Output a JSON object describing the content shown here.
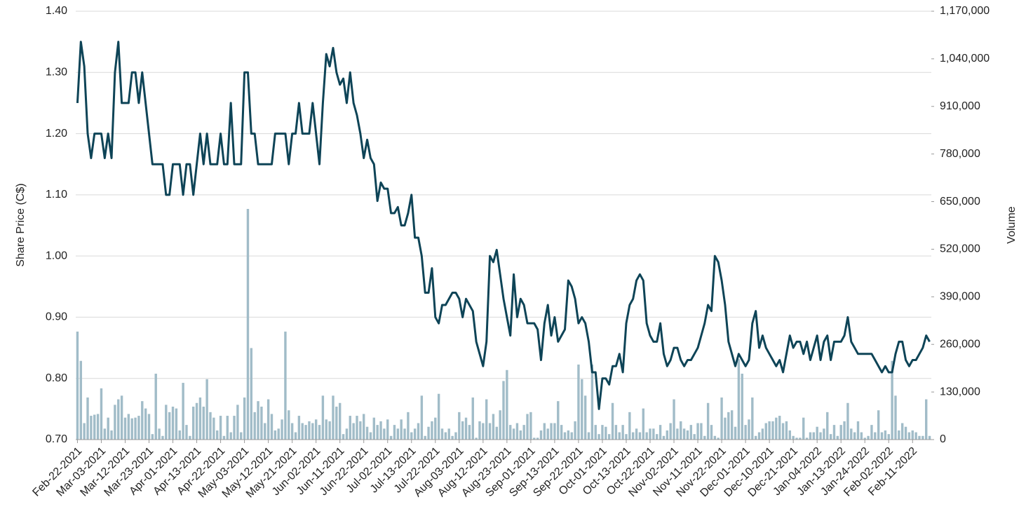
{
  "chart_data": {
    "type": "combo",
    "ylabel": "Share Price (C$)",
    "y2label": "Volume",
    "categories": [
      "Feb-22-2021",
      null,
      null,
      null,
      null,
      null,
      null,
      "Mar-03-2021",
      null,
      null,
      null,
      null,
      null,
      null,
      "Mar-12-2021",
      null,
      null,
      null,
      null,
      null,
      null,
      "Mar-23-2021",
      null,
      null,
      null,
      null,
      null,
      null,
      "Apr-01-2021",
      null,
      null,
      null,
      null,
      null,
      null,
      "Apr-13-2021",
      null,
      null,
      null,
      null,
      null,
      null,
      "Apr-22-2021",
      null,
      null,
      null,
      null,
      null,
      null,
      "May-03-2021",
      null,
      null,
      null,
      null,
      null,
      null,
      "May-12-2021",
      null,
      null,
      null,
      null,
      null,
      null,
      "May-21-2021",
      null,
      null,
      null,
      null,
      null,
      null,
      "Jun-02-2021",
      null,
      null,
      null,
      null,
      null,
      null,
      "Jun-11-2021",
      null,
      null,
      null,
      null,
      null,
      null,
      "Jun-22-2021",
      null,
      null,
      null,
      null,
      null,
      null,
      "Jul-02-2021",
      null,
      null,
      null,
      null,
      null,
      null,
      "Jul-13-2021",
      null,
      null,
      null,
      null,
      null,
      null,
      "Jul-22-2021",
      null,
      null,
      null,
      null,
      null,
      null,
      "Aug-03-2021",
      null,
      null,
      null,
      null,
      null,
      null,
      "Aug-12-2021",
      null,
      null,
      null,
      null,
      null,
      null,
      "Aug-23-2021",
      null,
      null,
      null,
      null,
      null,
      null,
      "Sep-01-2021",
      null,
      null,
      null,
      null,
      null,
      null,
      "Sep-13-2021",
      null,
      null,
      null,
      null,
      null,
      null,
      "Sep-22-2021",
      null,
      null,
      null,
      null,
      null,
      null,
      "Oct-01-2021",
      null,
      null,
      null,
      null,
      null,
      null,
      "Oct-13-2021",
      null,
      null,
      null,
      null,
      null,
      null,
      "Oct-22-2021",
      null,
      null,
      null,
      null,
      null,
      null,
      "Nov-02-2021",
      null,
      null,
      null,
      null,
      null,
      null,
      "Nov-11-2021",
      null,
      null,
      null,
      null,
      null,
      null,
      "Nov-22-2021",
      null,
      null,
      null,
      null,
      null,
      null,
      "Dec-01-2021",
      null,
      null,
      null,
      null,
      null,
      null,
      "Dec-10-2021",
      null,
      null,
      null,
      null,
      null,
      null,
      "Dec-21-2021",
      null,
      null,
      null,
      null,
      null,
      null,
      "Jan-04-2022",
      null,
      null,
      null,
      null,
      null,
      null,
      "Jan-13-2022",
      null,
      null,
      null,
      null,
      null,
      null,
      "Jan-24-2022",
      null,
      null,
      null,
      null,
      null,
      null,
      "Feb-02-2022",
      null,
      null,
      null,
      null,
      null,
      null,
      "Feb-11-2022",
      null,
      null,
      null,
      null,
      null
    ],
    "series": [
      {
        "name": "Volume",
        "type": "bar",
        "axis": "y2",
        "color": "#a1bcc8",
        "values": [
          295000,
          215000,
          45000,
          115000,
          65000,
          68000,
          70000,
          140000,
          30000,
          60000,
          25000,
          95000,
          110000,
          120000,
          60000,
          70000,
          58000,
          60000,
          65000,
          105000,
          85000,
          70000,
          15000,
          180000,
          30000,
          10000,
          95000,
          75000,
          90000,
          85000,
          25000,
          155000,
          40000,
          10000,
          90000,
          100000,
          115000,
          90000,
          165000,
          75000,
          60000,
          25000,
          65000,
          10000,
          65000,
          20000,
          65000,
          95000,
          20000,
          115000,
          630000,
          250000,
          75000,
          105000,
          90000,
          45000,
          110000,
          70000,
          25000,
          30000,
          55000,
          295000,
          80000,
          45000,
          20000,
          65000,
          45000,
          40000,
          50000,
          45000,
          55000,
          40000,
          120000,
          55000,
          50000,
          120000,
          90000,
          100000,
          15000,
          30000,
          65000,
          45000,
          65000,
          50000,
          70000,
          35000,
          20000,
          60000,
          40000,
          50000,
          30000,
          55000,
          10000,
          40000,
          30000,
          55000,
          30000,
          75000,
          20000,
          30000,
          45000,
          120000,
          10000,
          35000,
          50000,
          60000,
          125000,
          30000,
          20000,
          30000,
          10000,
          20000,
          75000,
          50000,
          60000,
          40000,
          115000,
          5000,
          50000,
          45000,
          110000,
          45000,
          70000,
          35000,
          80000,
          160000,
          190000,
          40000,
          30000,
          45000,
          25000,
          40000,
          70000,
          75000,
          5000,
          5000,
          25000,
          45000,
          30000,
          45000,
          45000,
          105000,
          40000,
          20000,
          25000,
          20000,
          50000,
          205000,
          165000,
          120000,
          20000,
          205000,
          40000,
          15000,
          40000,
          35000,
          15000,
          100000,
          40000,
          20000,
          40000,
          15000,
          75000,
          20000,
          30000,
          20000,
          85000,
          20000,
          30000,
          30000,
          15000,
          40000,
          10000,
          25000,
          45000,
          110000,
          30000,
          50000,
          30000,
          25000,
          40000,
          15000,
          45000,
          45000,
          10000,
          100000,
          40000,
          10000,
          5000,
          115000,
          60000,
          75000,
          80000,
          35000,
          220000,
          180000,
          40000,
          55000,
          115000,
          10000,
          20000,
          30000,
          45000,
          50000,
          50000,
          60000,
          65000,
          45000,
          50000,
          25000,
          10000,
          5000,
          5000,
          60000,
          5000,
          20000,
          20000,
          35000,
          20000,
          30000,
          75000,
          15000,
          40000,
          10000,
          40000,
          50000,
          100000,
          30000,
          20000,
          50000,
          20000,
          5000,
          10000,
          40000,
          20000,
          80000,
          20000,
          25000,
          15000,
          215000,
          120000,
          25000,
          45000,
          35000,
          20000,
          25000,
          20000,
          10000,
          10000,
          110000,
          10000
        ]
      },
      {
        "name": "Share Price",
        "type": "line",
        "color": "#0e4457",
        "values": [
          1.25,
          1.35,
          1.31,
          1.2,
          1.16,
          1.2,
          1.2,
          1.2,
          1.16,
          1.2,
          1.16,
          1.3,
          1.35,
          1.25,
          1.25,
          1.25,
          1.3,
          1.3,
          1.25,
          1.3,
          1.25,
          1.2,
          1.15,
          1.15,
          1.15,
          1.15,
          1.1,
          1.1,
          1.15,
          1.15,
          1.15,
          1.1,
          1.15,
          1.15,
          1.1,
          1.15,
          1.2,
          1.15,
          1.2,
          1.15,
          1.15,
          1.15,
          1.2,
          1.15,
          1.15,
          1.25,
          1.15,
          1.15,
          1.15,
          1.3,
          1.3,
          1.2,
          1.2,
          1.15,
          1.15,
          1.15,
          1.15,
          1.15,
          1.2,
          1.2,
          1.2,
          1.2,
          1.15,
          1.2,
          1.2,
          1.25,
          1.2,
          1.2,
          1.2,
          1.25,
          1.2,
          1.15,
          1.25,
          1.33,
          1.31,
          1.34,
          1.3,
          1.28,
          1.29,
          1.25,
          1.3,
          1.25,
          1.23,
          1.2,
          1.16,
          1.19,
          1.16,
          1.15,
          1.09,
          1.12,
          1.11,
          1.11,
          1.07,
          1.07,
          1.08,
          1.05,
          1.05,
          1.07,
          1.1,
          1.03,
          1.03,
          1.0,
          0.94,
          0.94,
          0.98,
          0.9,
          0.89,
          0.92,
          0.92,
          0.93,
          0.94,
          0.94,
          0.93,
          0.9,
          0.93,
          0.92,
          0.91,
          0.86,
          0.84,
          0.82,
          0.86,
          1.0,
          0.99,
          1.01,
          0.97,
          0.93,
          0.9,
          0.87,
          0.97,
          0.9,
          0.93,
          0.92,
          0.89,
          0.89,
          0.89,
          0.88,
          0.83,
          0.89,
          0.92,
          0.87,
          0.9,
          0.86,
          0.87,
          0.88,
          0.96,
          0.95,
          0.93,
          0.89,
          0.9,
          0.89,
          0.86,
          0.81,
          0.81,
          0.75,
          0.8,
          0.8,
          0.79,
          0.82,
          0.82,
          0.84,
          0.81,
          0.89,
          0.92,
          0.93,
          0.96,
          0.97,
          0.96,
          0.89,
          0.87,
          0.86,
          0.86,
          0.89,
          0.84,
          0.82,
          0.83,
          0.85,
          0.85,
          0.83,
          0.82,
          0.83,
          0.83,
          0.84,
          0.85,
          0.87,
          0.89,
          0.92,
          0.91,
          1.0,
          0.99,
          0.96,
          0.92,
          0.86,
          0.84,
          0.82,
          0.84,
          0.83,
          0.82,
          0.83,
          0.89,
          0.91,
          0.85,
          0.87,
          0.85,
          0.84,
          0.83,
          0.82,
          0.83,
          0.81,
          0.84,
          0.87,
          0.85,
          0.86,
          0.86,
          0.84,
          0.86,
          0.83,
          0.85,
          0.87,
          0.83,
          0.86,
          0.87,
          0.83,
          0.86,
          0.86,
          0.86,
          0.87,
          0.9,
          0.86,
          0.85,
          0.84,
          0.84,
          0.84,
          0.84,
          0.84,
          0.83,
          0.82,
          0.81,
          0.82,
          0.81,
          0.81,
          0.84,
          0.86,
          0.86,
          0.83,
          0.82,
          0.83,
          0.83,
          0.84,
          0.85,
          0.87,
          0.86
        ]
      }
    ],
    "ylim": [
      0.7,
      1.4
    ],
    "yticks": [
      {
        "value": 0.7,
        "label": "0.70"
      },
      {
        "value": 0.8,
        "label": "0.80"
      },
      {
        "value": 0.9,
        "label": "0.90"
      },
      {
        "value": 1.0,
        "label": "1.00"
      },
      {
        "value": 1.1,
        "label": "1.10"
      },
      {
        "value": 1.2,
        "label": "1.20"
      },
      {
        "value": 1.3,
        "label": "1.30"
      },
      {
        "value": 1.4,
        "label": "1.40"
      }
    ],
    "y2lim": [
      0,
      1170000
    ],
    "y2ticks": [
      0,
      {
        "value": 130000,
        "label": "130,000"
      },
      {
        "value": 260000,
        "label": "260,000"
      },
      {
        "value": 390000,
        "label": "390,000"
      },
      {
        "value": 520000,
        "label": "520,000"
      },
      {
        "value": 650000,
        "label": "650,000"
      },
      {
        "value": 780000,
        "label": "780,000"
      },
      {
        "value": 910000,
        "label": "910,000"
      },
      {
        "value": 1040000,
        "label": "1,040,000"
      },
      {
        "value": 1170000,
        "label": "1,170,000"
      }
    ],
    "grid": true
  }
}
